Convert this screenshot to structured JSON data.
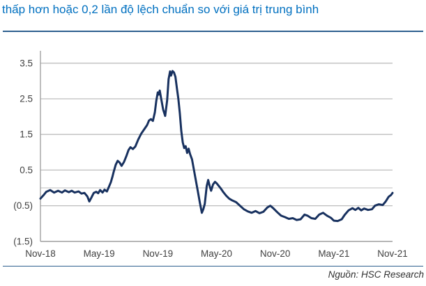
{
  "header": {
    "title": "thấp hơn hoặc 0,2 lần độ lệch chuẩn so với giá trị trung bình"
  },
  "footer": {
    "source": "Nguồn: HSC Research"
  },
  "colors": {
    "title_text": "#0070C0",
    "divider": "#2C5E8E",
    "series_line": "#18315F",
    "gridline": "#BDBDBD",
    "zero_line": "#C9C9C9",
    "axis_line": "#9B9B9B",
    "tick_label": "#3F3F3F",
    "source_text": "#303030"
  },
  "chart_data": {
    "type": "line",
    "title": "",
    "xlabel": "",
    "ylabel": "",
    "x_unit": "months since Nov-2018",
    "xlim": [
      0,
      36
    ],
    "ylim": [
      -1.5,
      3.85
    ],
    "grid": true,
    "legend_position": "none",
    "x_tick_months": [
      0,
      6,
      12,
      18,
      24,
      30,
      36
    ],
    "x_tick_labels": [
      "Nov-18",
      "May-19",
      "Nov-19",
      "May-20",
      "Nov-20",
      "May-21",
      "Nov-21"
    ],
    "y_tick_values": [
      3.5,
      2.5,
      1.5,
      0.5,
      -0.5,
      -1.5
    ],
    "y_tick_labels": [
      "3.5",
      "2.5",
      "1.5",
      "0.5",
      "(0.5)",
      "(1.5)"
    ],
    "zero_axis_line": true,
    "series": [
      {
        "points": [
          [
            0,
            -0.3
          ],
          [
            0.3,
            -0.21
          ],
          [
            0.6,
            -0.11
          ],
          [
            1,
            -0.06
          ],
          [
            1.4,
            -0.13
          ],
          [
            1.8,
            -0.08
          ],
          [
            2.2,
            -0.13
          ],
          [
            2.5,
            -0.07
          ],
          [
            2.9,
            -0.12
          ],
          [
            3.2,
            -0.08
          ],
          [
            3.5,
            -0.13
          ],
          [
            3.9,
            -0.1
          ],
          [
            4.2,
            -0.16
          ],
          [
            4.5,
            -0.14
          ],
          [
            4.8,
            -0.24
          ],
          [
            5,
            -0.38
          ],
          [
            5.2,
            -0.28
          ],
          [
            5.45,
            -0.14
          ],
          [
            5.7,
            -0.11
          ],
          [
            5.9,
            -0.15
          ],
          [
            6.1,
            -0.06
          ],
          [
            6.35,
            -0.13
          ],
          [
            6.55,
            -0.05
          ],
          [
            6.8,
            -0.1
          ],
          [
            7,
            0.03
          ],
          [
            7.2,
            0.16
          ],
          [
            7.35,
            0.3
          ],
          [
            7.5,
            0.46
          ],
          [
            7.7,
            0.65
          ],
          [
            7.9,
            0.76
          ],
          [
            8.1,
            0.71
          ],
          [
            8.3,
            0.62
          ],
          [
            8.55,
            0.73
          ],
          [
            8.8,
            0.9
          ],
          [
            9,
            1.06
          ],
          [
            9.2,
            1.14
          ],
          [
            9.45,
            1.09
          ],
          [
            9.7,
            1.16
          ],
          [
            10,
            1.36
          ],
          [
            10.3,
            1.52
          ],
          [
            10.6,
            1.64
          ],
          [
            10.9,
            1.76
          ],
          [
            11.1,
            1.89
          ],
          [
            11.3,
            1.93
          ],
          [
            11.5,
            1.88
          ],
          [
            11.7,
            2.12
          ],
          [
            11.85,
            2.45
          ],
          [
            12,
            2.68
          ],
          [
            12.1,
            2.62
          ],
          [
            12.2,
            2.73
          ],
          [
            12.35,
            2.5
          ],
          [
            12.55,
            2.2
          ],
          [
            12.75,
            2.02
          ],
          [
            12.95,
            2.45
          ],
          [
            13.1,
            3.05
          ],
          [
            13.25,
            3.27
          ],
          [
            13.35,
            3.15
          ],
          [
            13.5,
            3.28
          ],
          [
            13.65,
            3.24
          ],
          [
            13.8,
            3.12
          ],
          [
            13.95,
            2.8
          ],
          [
            14.1,
            2.5
          ],
          [
            14.25,
            2.1
          ],
          [
            14.4,
            1.6
          ],
          [
            14.55,
            1.28
          ],
          [
            14.7,
            1.12
          ],
          [
            14.85,
            1.17
          ],
          [
            15,
            0.98
          ],
          [
            15.15,
            1.1
          ],
          [
            15.3,
            0.95
          ],
          [
            15.5,
            0.8
          ],
          [
            15.7,
            0.5
          ],
          [
            15.9,
            0.2
          ],
          [
            16.1,
            -0.1
          ],
          [
            16.3,
            -0.42
          ],
          [
            16.5,
            -0.7
          ],
          [
            16.65,
            -0.6
          ],
          [
            16.8,
            -0.45
          ],
          [
            17,
            0.05
          ],
          [
            17.15,
            0.22
          ],
          [
            17.3,
            0.05
          ],
          [
            17.45,
            -0.08
          ],
          [
            17.65,
            0.1
          ],
          [
            17.85,
            0.17
          ],
          [
            18.05,
            0.12
          ],
          [
            18.25,
            0.05
          ],
          [
            18.45,
            -0.02
          ],
          [
            18.7,
            -0.12
          ],
          [
            19,
            -0.22
          ],
          [
            19.3,
            -0.3
          ],
          [
            19.6,
            -0.35
          ],
          [
            20,
            -0.4
          ],
          [
            20.4,
            -0.5
          ],
          [
            20.8,
            -0.6
          ],
          [
            21.2,
            -0.66
          ],
          [
            21.6,
            -0.7
          ],
          [
            22,
            -0.65
          ],
          [
            22.4,
            -0.71
          ],
          [
            22.8,
            -0.67
          ],
          [
            23.2,
            -0.55
          ],
          [
            23.5,
            -0.5
          ],
          [
            23.8,
            -0.57
          ],
          [
            24.2,
            -0.68
          ],
          [
            24.6,
            -0.78
          ],
          [
            25,
            -0.82
          ],
          [
            25.4,
            -0.87
          ],
          [
            25.8,
            -0.85
          ],
          [
            26.2,
            -0.9
          ],
          [
            26.6,
            -0.88
          ],
          [
            27,
            -0.75
          ],
          [
            27.3,
            -0.78
          ],
          [
            27.7,
            -0.85
          ],
          [
            28.1,
            -0.87
          ],
          [
            28.5,
            -0.75
          ],
          [
            28.9,
            -0.7
          ],
          [
            29.3,
            -0.78
          ],
          [
            29.7,
            -0.84
          ],
          [
            30,
            -0.92
          ],
          [
            30.4,
            -0.93
          ],
          [
            30.8,
            -0.88
          ],
          [
            31.1,
            -0.76
          ],
          [
            31.5,
            -0.63
          ],
          [
            31.9,
            -0.57
          ],
          [
            32.2,
            -0.62
          ],
          [
            32.5,
            -0.56
          ],
          [
            32.8,
            -0.63
          ],
          [
            33.1,
            -0.58
          ],
          [
            33.5,
            -0.62
          ],
          [
            33.9,
            -0.6
          ],
          [
            34.2,
            -0.5
          ],
          [
            34.6,
            -0.46
          ],
          [
            35,
            -0.48
          ],
          [
            35.3,
            -0.38
          ],
          [
            35.6,
            -0.25
          ],
          [
            35.85,
            -0.2
          ],
          [
            36,
            -0.14
          ]
        ]
      }
    ]
  }
}
